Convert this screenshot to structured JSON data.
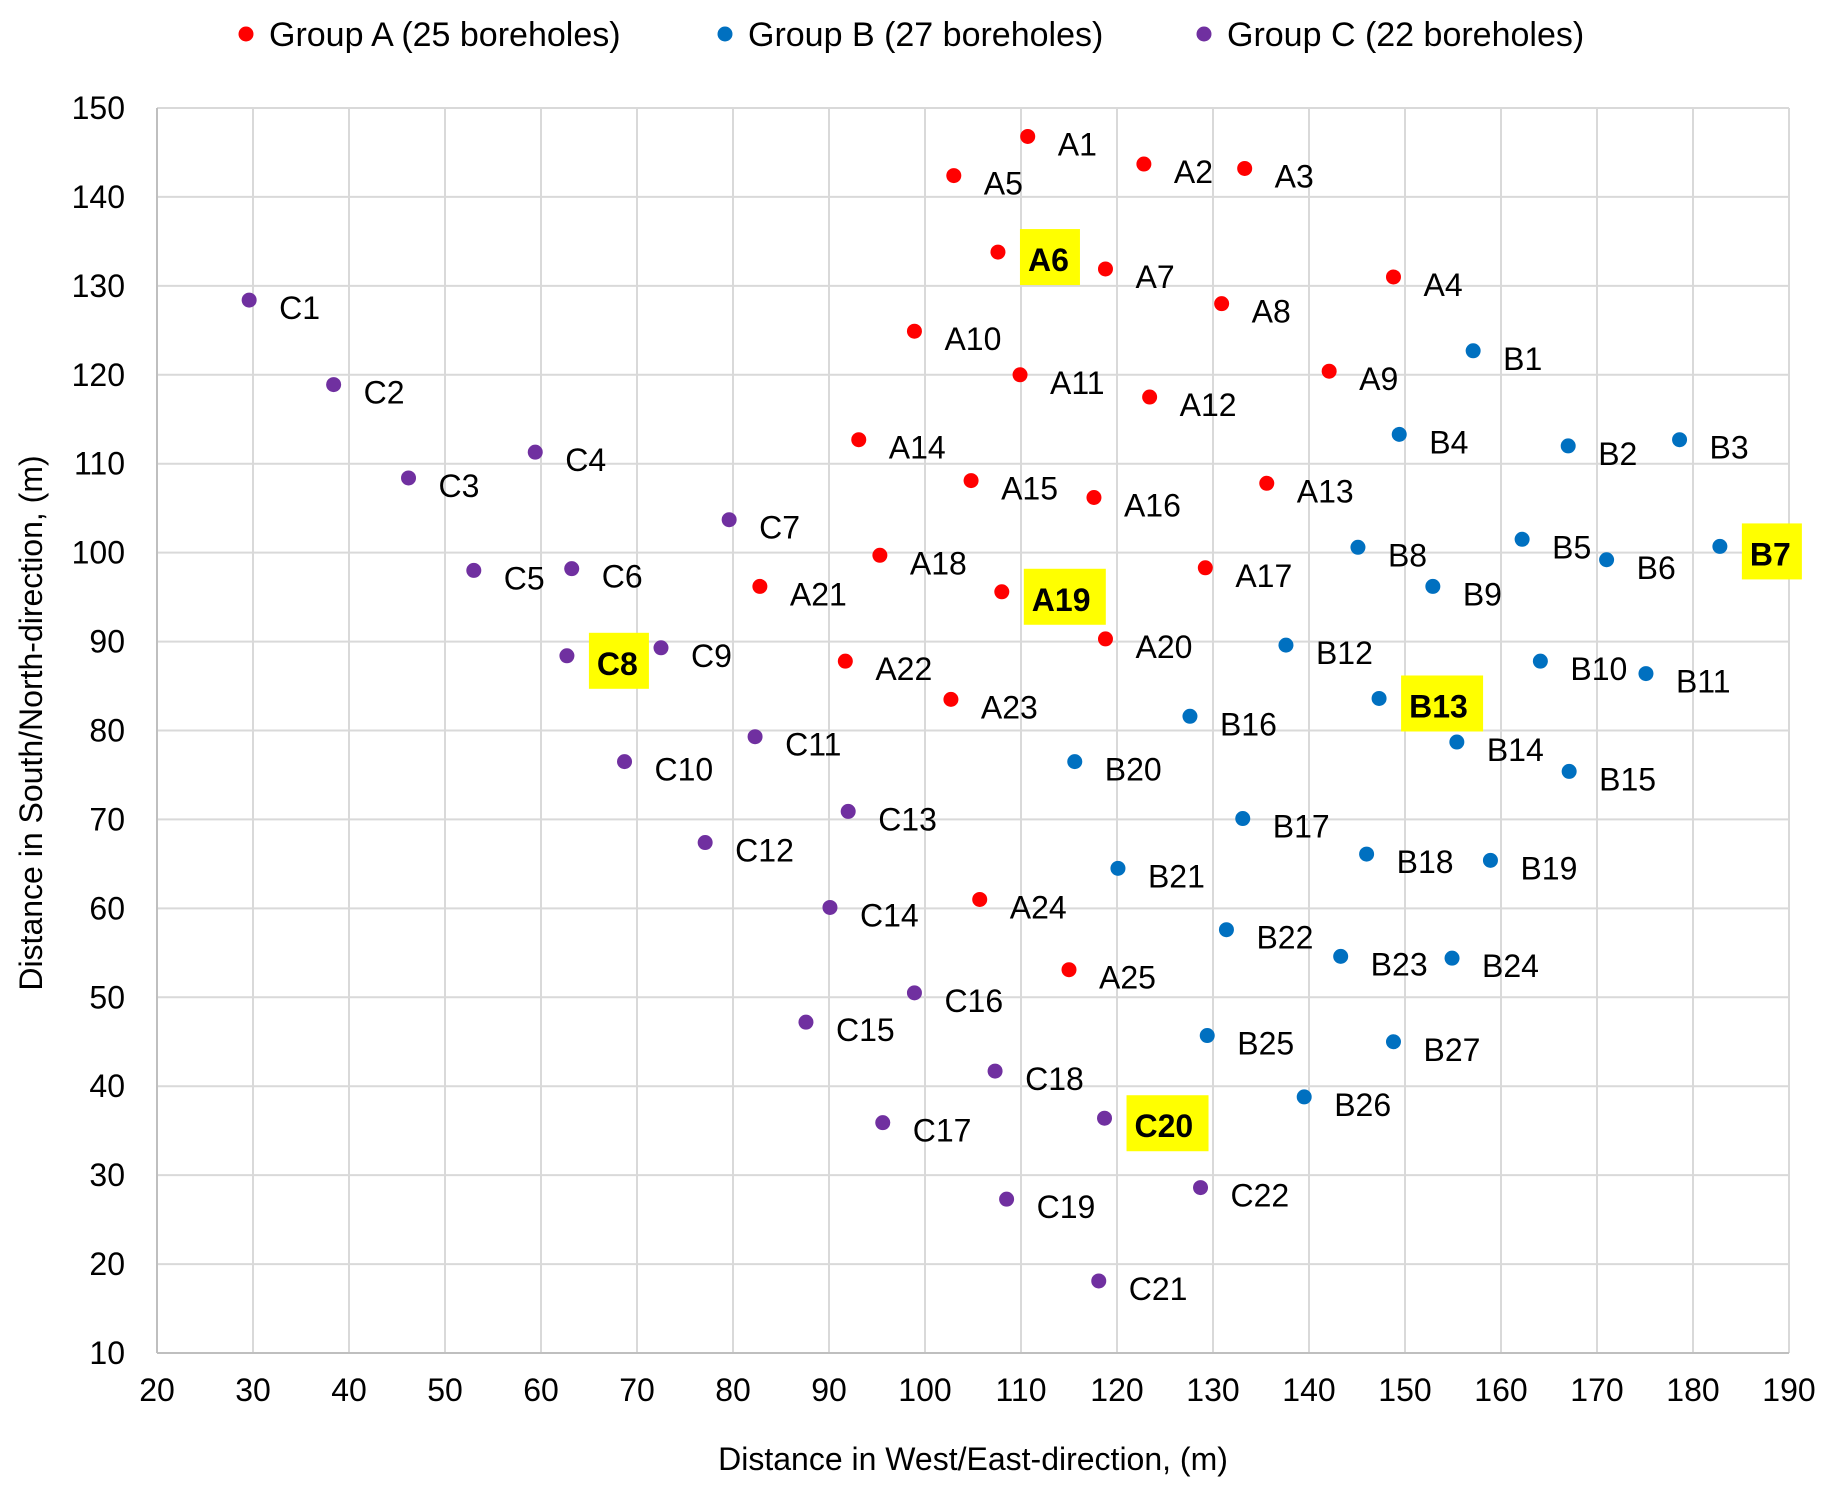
{
  "chart_data": {
    "type": "scatter",
    "title": "",
    "xlabel": "Distance in West/East-direction, (m)",
    "ylabel": "Distance in South/North-direction, (m)",
    "xlim": [
      20,
      190
    ],
    "ylim": [
      10,
      150
    ],
    "xticks": [
      20,
      30,
      40,
      50,
      60,
      70,
      80,
      90,
      100,
      110,
      120,
      130,
      140,
      150,
      160,
      170,
      180,
      190
    ],
    "yticks": [
      10,
      20,
      30,
      40,
      50,
      60,
      70,
      80,
      90,
      100,
      110,
      120,
      130,
      140,
      150
    ],
    "grid": true,
    "legend_position": "top",
    "highlight_color": "#ffff00",
    "series": [
      {
        "name": "Group A (25 boreholes)",
        "color": "#ff0000",
        "points": [
          {
            "label": "A1",
            "x": 110.7,
            "y": 146.8
          },
          {
            "label": "A2",
            "x": 122.8,
            "y": 143.7
          },
          {
            "label": "A3",
            "x": 133.3,
            "y": 143.2
          },
          {
            "label": "A4",
            "x": 148.8,
            "y": 131.0
          },
          {
            "label": "A5",
            "x": 103.0,
            "y": 142.4
          },
          {
            "label": "A6",
            "x": 107.6,
            "y": 133.8,
            "highlight": true
          },
          {
            "label": "A7",
            "x": 118.8,
            "y": 131.9
          },
          {
            "label": "A8",
            "x": 130.9,
            "y": 128.0
          },
          {
            "label": "A9",
            "x": 142.1,
            "y": 120.4
          },
          {
            "label": "A10",
            "x": 98.9,
            "y": 124.9
          },
          {
            "label": "A11",
            "x": 109.9,
            "y": 120.0
          },
          {
            "label": "A12",
            "x": 123.4,
            "y": 117.5
          },
          {
            "label": "A13",
            "x": 135.6,
            "y": 107.8
          },
          {
            "label": "A14",
            "x": 93.1,
            "y": 112.7
          },
          {
            "label": "A15",
            "x": 104.8,
            "y": 108.1
          },
          {
            "label": "A16",
            "x": 117.6,
            "y": 106.2
          },
          {
            "label": "A17",
            "x": 129.2,
            "y": 98.3
          },
          {
            "label": "A18",
            "x": 95.3,
            "y": 99.7
          },
          {
            "label": "A19",
            "x": 108.0,
            "y": 95.6,
            "highlight": true
          },
          {
            "label": "A20",
            "x": 118.8,
            "y": 90.3
          },
          {
            "label": "A21",
            "x": 82.8,
            "y": 96.2
          },
          {
            "label": "A22",
            "x": 91.7,
            "y": 87.8
          },
          {
            "label": "A23",
            "x": 102.7,
            "y": 83.5
          },
          {
            "label": "A24",
            "x": 105.7,
            "y": 61.0
          },
          {
            "label": "A25",
            "x": 115.0,
            "y": 53.1
          }
        ]
      },
      {
        "name": "Group B (27 boreholes)",
        "color": "#0070c0",
        "points": [
          {
            "label": "B1",
            "x": 157.1,
            "y": 122.7
          },
          {
            "label": "B2",
            "x": 167.0,
            "y": 112.0
          },
          {
            "label": "B3",
            "x": 178.6,
            "y": 112.7
          },
          {
            "label": "B4",
            "x": 149.4,
            "y": 113.3
          },
          {
            "label": "B5",
            "x": 162.2,
            "y": 101.5
          },
          {
            "label": "B6",
            "x": 171.0,
            "y": 99.2
          },
          {
            "label": "B7",
            "x": 182.8,
            "y": 100.7,
            "highlight": true
          },
          {
            "label": "B8",
            "x": 145.1,
            "y": 100.6
          },
          {
            "label": "B9",
            "x": 152.9,
            "y": 96.2
          },
          {
            "label": "B10",
            "x": 164.1,
            "y": 87.8
          },
          {
            "label": "B11",
            "x": 175.1,
            "y": 86.4
          },
          {
            "label": "B12",
            "x": 137.6,
            "y": 89.6
          },
          {
            "label": "B13",
            "x": 147.3,
            "y": 83.6,
            "highlight": true
          },
          {
            "label": "B14",
            "x": 155.4,
            "y": 78.7
          },
          {
            "label": "B15",
            "x": 167.1,
            "y": 75.4
          },
          {
            "label": "B16",
            "x": 127.6,
            "y": 81.6
          },
          {
            "label": "B17",
            "x": 133.1,
            "y": 70.1
          },
          {
            "label": "B18",
            "x": 146.0,
            "y": 66.1
          },
          {
            "label": "B19",
            "x": 158.9,
            "y": 65.4
          },
          {
            "label": "B20",
            "x": 115.6,
            "y": 76.5
          },
          {
            "label": "B21",
            "x": 120.1,
            "y": 64.5
          },
          {
            "label": "B22",
            "x": 131.4,
            "y": 57.6
          },
          {
            "label": "B23",
            "x": 143.3,
            "y": 54.6
          },
          {
            "label": "B24",
            "x": 154.9,
            "y": 54.4
          },
          {
            "label": "B25",
            "x": 129.4,
            "y": 45.7
          },
          {
            "label": "B26",
            "x": 139.5,
            "y": 38.8
          },
          {
            "label": "B27",
            "x": 148.8,
            "y": 45.0
          }
        ]
      },
      {
        "name": "Group C (22 boreholes)",
        "color": "#7030a0",
        "points": [
          {
            "label": "C1",
            "x": 29.6,
            "y": 128.4
          },
          {
            "label": "C2",
            "x": 38.4,
            "y": 118.9
          },
          {
            "label": "C3",
            "x": 46.2,
            "y": 108.4
          },
          {
            "label": "C4",
            "x": 59.4,
            "y": 111.3
          },
          {
            "label": "C5",
            "x": 53.0,
            "y": 98.0
          },
          {
            "label": "C6",
            "x": 63.2,
            "y": 98.2
          },
          {
            "label": "C7",
            "x": 79.6,
            "y": 103.7
          },
          {
            "label": "C8",
            "x": 62.7,
            "y": 88.4,
            "highlight": true
          },
          {
            "label": "C9",
            "x": 72.5,
            "y": 89.3
          },
          {
            "label": "C10",
            "x": 68.7,
            "y": 76.5
          },
          {
            "label": "C11",
            "x": 82.3,
            "y": 79.3
          },
          {
            "label": "C12",
            "x": 77.1,
            "y": 67.4
          },
          {
            "label": "C13",
            "x": 92.0,
            "y": 70.9
          },
          {
            "label": "C14",
            "x": 90.1,
            "y": 60.1
          },
          {
            "label": "C15",
            "x": 87.6,
            "y": 47.2
          },
          {
            "label": "C16",
            "x": 98.9,
            "y": 50.5
          },
          {
            "label": "C17",
            "x": 95.6,
            "y": 35.9
          },
          {
            "label": "C18",
            "x": 107.3,
            "y": 41.7
          },
          {
            "label": "C19",
            "x": 108.5,
            "y": 27.3
          },
          {
            "label": "C20",
            "x": 118.7,
            "y": 36.4,
            "highlight": true
          },
          {
            "label": "C21",
            "x": 118.1,
            "y": 18.1
          },
          {
            "label": "C22",
            "x": 128.7,
            "y": 28.6
          }
        ]
      }
    ]
  }
}
